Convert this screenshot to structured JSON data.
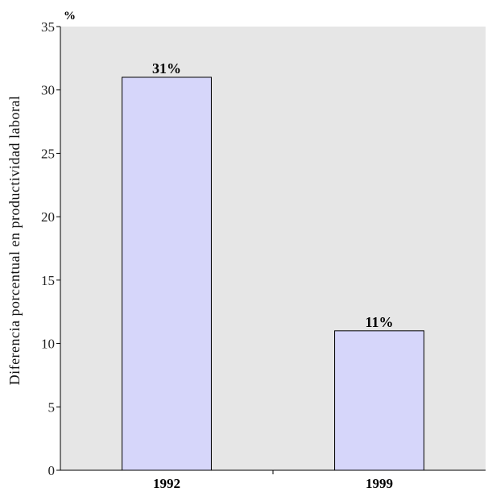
{
  "chart_data": {
    "type": "bar",
    "categories": [
      "1992",
      "1999"
    ],
    "values": [
      31,
      11
    ],
    "data_labels": [
      "31%",
      "11%"
    ],
    "title": "",
    "xlabel": "",
    "ylabel": "Diferencia porcentual en productividad laboral",
    "y_unit_label": "%",
    "ylim": [
      0,
      35
    ],
    "yticks": [
      0,
      5,
      10,
      15,
      20,
      25,
      30,
      35
    ],
    "grid": false,
    "legend": "none",
    "colors": {
      "plot_background": "#e6e6e6",
      "bar_fill": "#d6d6fa",
      "bar_stroke": "#000000"
    }
  }
}
